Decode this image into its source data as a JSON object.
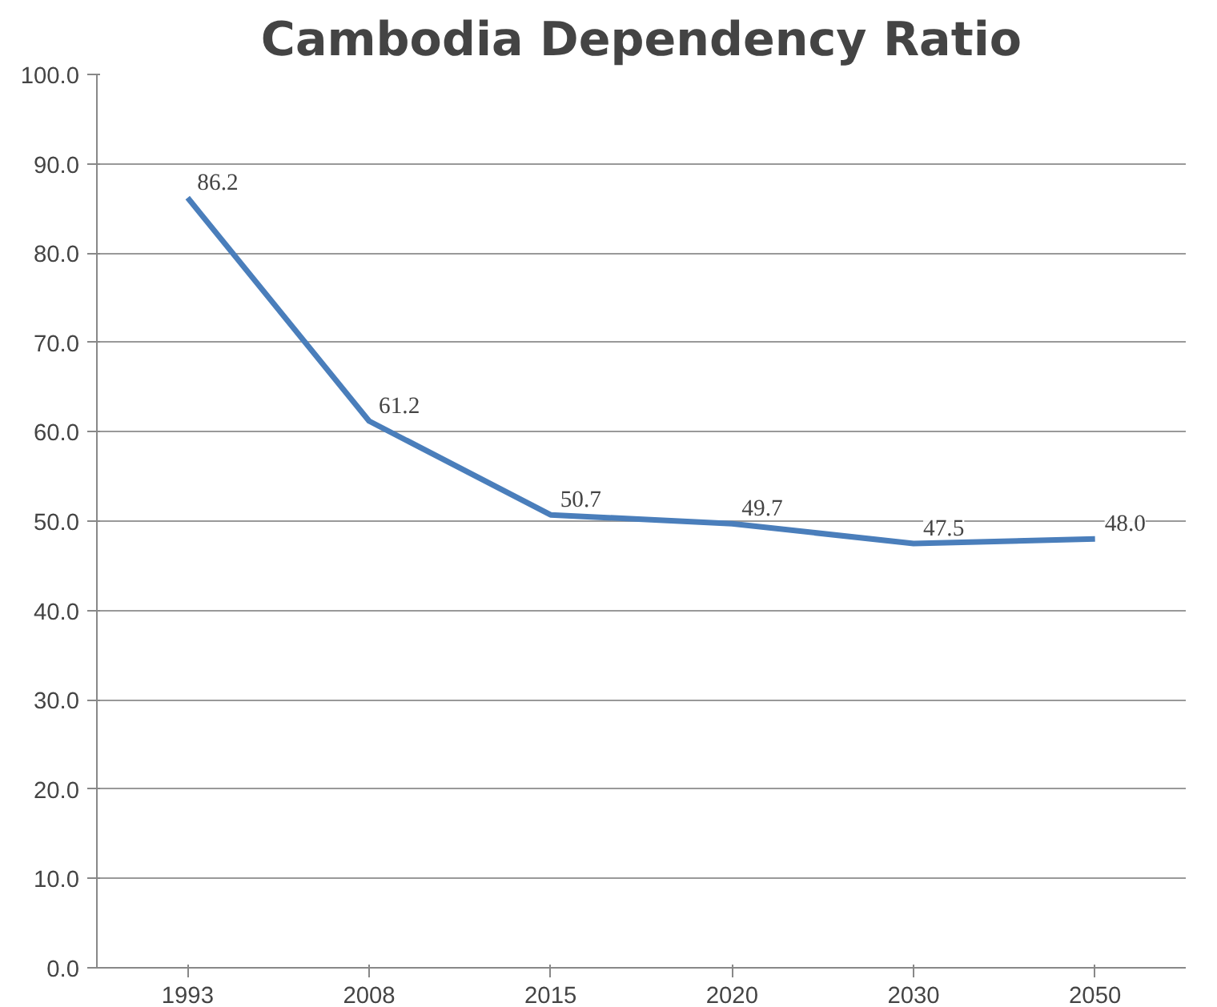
{
  "chart_data": {
    "type": "line",
    "title": "Cambodia Dependency Ratio",
    "categories": [
      "1993",
      "2008",
      "2015",
      "2020",
      "2030",
      "2050"
    ],
    "values": [
      86.2,
      61.2,
      50.7,
      49.7,
      47.5,
      48.0
    ],
    "value_labels": [
      "86.2",
      "61.2",
      "50.7",
      "49.7",
      "47.5",
      "48.0"
    ],
    "color": "#4a7ebb",
    "ylim": [
      0,
      100
    ],
    "yticks": [
      {
        "value": 0,
        "label": "0.0"
      },
      {
        "value": 10,
        "label": "10.0"
      },
      {
        "value": 20,
        "label": "20.0"
      },
      {
        "value": 30,
        "label": "30.0"
      },
      {
        "value": 40,
        "label": "40.0"
      },
      {
        "value": 50,
        "label": "50.0"
      },
      {
        "value": 60,
        "label": "60.0"
      },
      {
        "value": 70,
        "label": "70.0"
      },
      {
        "value": 80,
        "label": "80.0"
      },
      {
        "value": 90,
        "label": "90.0"
      },
      {
        "value": 100,
        "label": "100.0"
      }
    ],
    "grid": "y",
    "marker": "none",
    "line_style": "solid"
  }
}
